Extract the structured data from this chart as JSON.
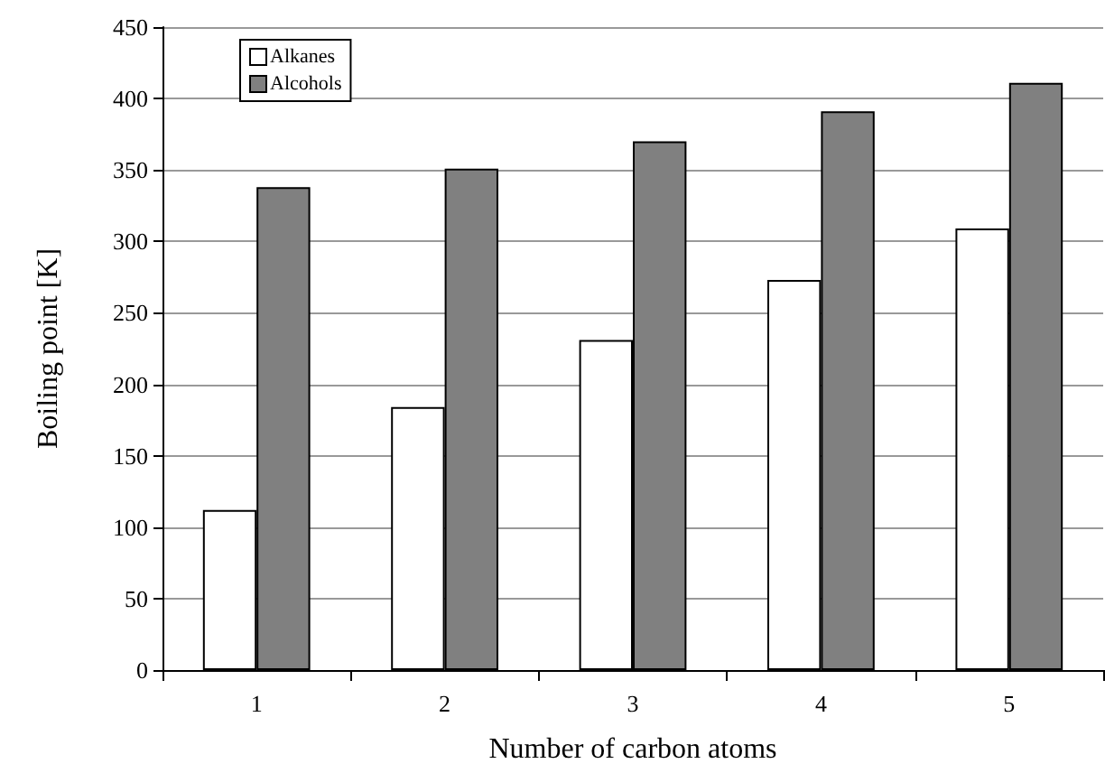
{
  "chart_data": {
    "type": "bar",
    "xlabel": "Number of carbon atoms",
    "ylabel": "Boiling point [K]",
    "categories": [
      "1",
      "2",
      "3",
      "4",
      "5"
    ],
    "series": [
      {
        "name": "Alkanes",
        "color": "#ffffff",
        "values": [
          112,
          184,
          231,
          273,
          309
        ]
      },
      {
        "name": "Alcohols",
        "color": "#808080",
        "values": [
          338,
          351,
          370,
          391,
          411
        ]
      }
    ],
    "ylim": [
      0,
      450
    ],
    "yticks": [
      0,
      50,
      100,
      150,
      200,
      250,
      300,
      350,
      400,
      450
    ],
    "grid": "y",
    "legend": "top left"
  }
}
